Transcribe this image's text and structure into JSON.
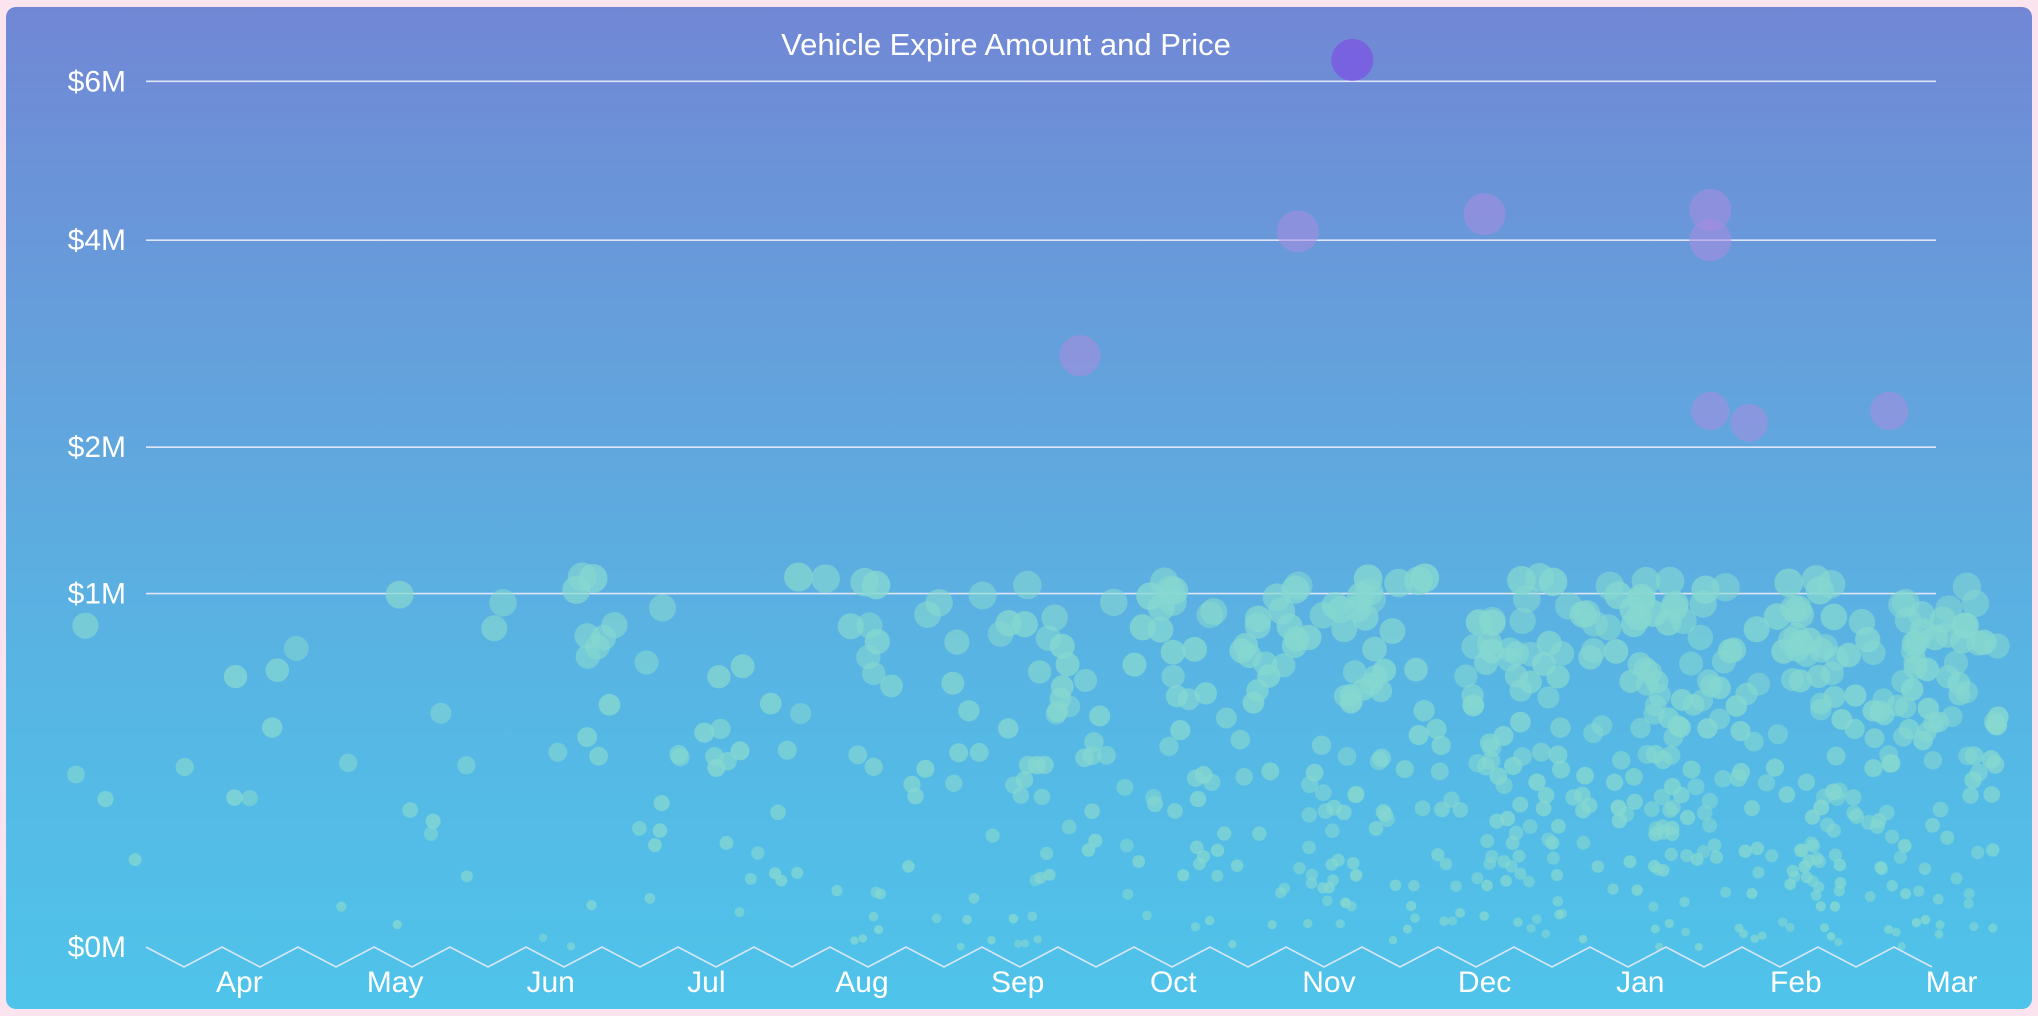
{
  "chart_data": {
    "type": "scatter",
    "title": "Vehicle Expire Amount and Price",
    "xlabel": "",
    "ylabel": "",
    "x_ticks": [
      "Apr",
      "May",
      "Jun",
      "Jul",
      "Aug",
      "Sep",
      "Oct",
      "Nov",
      "Dec",
      "Jan",
      "Feb",
      "Mar"
    ],
    "y_ticks": [
      {
        "label": "$0M",
        "value": 0
      },
      {
        "label": "$1M",
        "value": 1000000
      },
      {
        "label": "$2M",
        "value": 2000000
      },
      {
        "label": "$4M",
        "value": 4000000
      },
      {
        "label": "$6M",
        "value": 6000000
      }
    ],
    "y_scale": "sqrt",
    "ylim": [
      0,
      6200000
    ],
    "grid": "horizontal",
    "colors": {
      "point": "#86d8d0",
      "high_point": "#a98de0",
      "top_point": "#7b5be0",
      "gridline": "#dfe5f7",
      "background_top": "#7187d5",
      "background_bottom": "#4fc4ea"
    },
    "highlight_points": [
      {
        "month": 6.0,
        "value": 2800000
      },
      {
        "month": 7.4,
        "value": 4100000
      },
      {
        "month": 7.75,
        "value": 6300000
      },
      {
        "month": 8.6,
        "value": 4300000
      },
      {
        "month": 10.05,
        "value": 4350000
      },
      {
        "month": 10.05,
        "value": 4000000
      },
      {
        "month": 10.05,
        "value": 2300000
      },
      {
        "month": 11.2,
        "value": 2300000
      },
      {
        "month": 10.3,
        "value": 2200000
      }
    ],
    "density_by_month": [
      6,
      10,
      14,
      20,
      28,
      40,
      52,
      70,
      85,
      100,
      115,
      135
    ],
    "seed": 11
  }
}
